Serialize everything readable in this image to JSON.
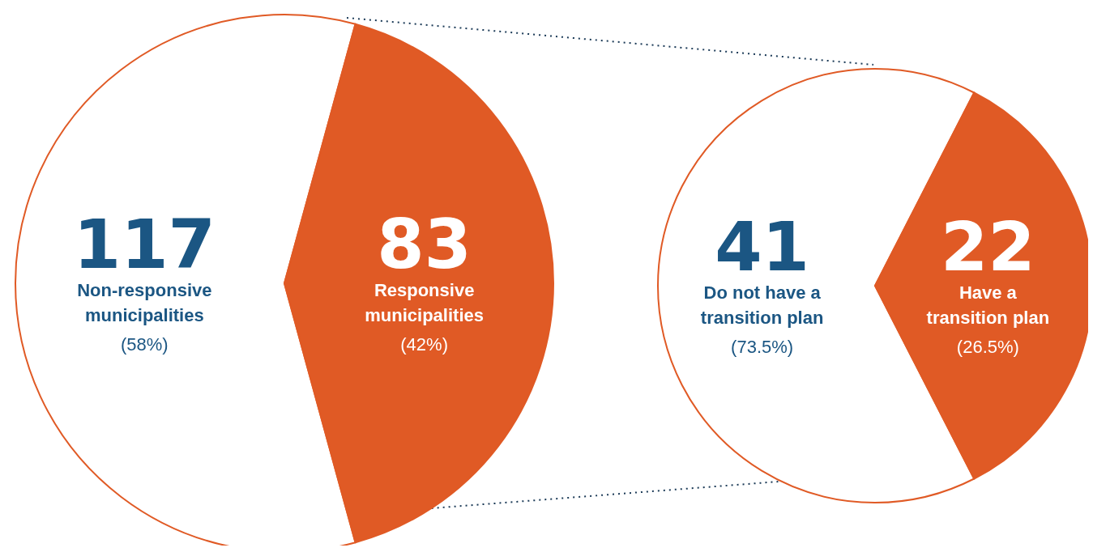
{
  "chart_data": [
    {
      "type": "pie",
      "categories": [
        "Non-responsive municipalities",
        "Responsive municipalities"
      ],
      "values": [
        117,
        83
      ],
      "colors": [
        "#ffffff",
        "#e05a25"
      ],
      "data_labels": true,
      "legend": false,
      "annotations": [
        "(58%)",
        "(42%)"
      ]
    },
    {
      "type": "pie",
      "categories": [
        "Do not have a transition plan",
        "Have a transition plan"
      ],
      "values": [
        41,
        22
      ],
      "colors": [
        "#ffffff",
        "#e05a25"
      ],
      "data_labels": true,
      "legend": false,
      "annotations": [
        "(73.5%)",
        "(26.5%)"
      ]
    }
  ]
}
